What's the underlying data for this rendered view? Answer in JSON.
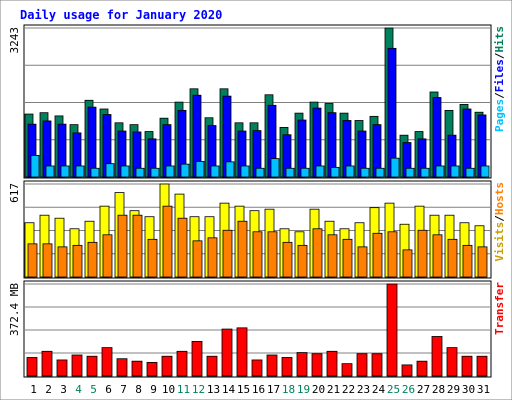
{
  "chart_data": {
    "type": "bar",
    "title": "Daily usage for January 2020",
    "categories": [
      "1",
      "2",
      "3",
      "4",
      "5",
      "6",
      "7",
      "8",
      "9",
      "10",
      "11",
      "12",
      "13",
      "14",
      "15",
      "16",
      "17",
      "18",
      "19",
      "20",
      "21",
      "22",
      "23",
      "24",
      "25",
      "26",
      "27",
      "28",
      "29",
      "30",
      "31"
    ],
    "weekend_days": [
      "4",
      "5",
      "11",
      "12",
      "18",
      "19",
      "25",
      "26"
    ],
    "panels": [
      {
        "id": "hits-files-pages",
        "ylabel": "Hits/Files/Pages",
        "ylabel_parts": [
          "Hits",
          "/",
          "Files",
          "/",
          "Pages"
        ],
        "ymax": 3243,
        "ymax_label": "3243",
        "series": [
          {
            "name": "Hits",
            "color": "#00805c",
            "values": [
              1370,
              1400,
              1330,
              1140,
              1670,
              1480,
              1180,
              1140,
              990,
              1280,
              1630,
              1920,
              1290,
              1920,
              1180,
              1180,
              1790,
              1080,
              1390,
              1630,
              1600,
              1390,
              1230,
              1320,
              3243,
              910,
              990,
              1850,
              1450,
              1580,
              1410
            ]
          },
          {
            "name": "Files",
            "color": "#0000ff",
            "values": [
              1150,
              1220,
              1150,
              960,
              1520,
              1360,
              1000,
              980,
              830,
              1140,
              1450,
              1780,
              1120,
              1760,
              1000,
              1010,
              1560,
              920,
              1240,
              1500,
              1400,
              1230,
              1000,
              1140,
              2800,
              750,
              830,
              1730,
              910,
              1480,
              1350
            ]
          },
          {
            "name": "Pages",
            "color": "#00c0ff",
            "values": [
              470,
              240,
              240,
              240,
              190,
              290,
              240,
              190,
              190,
              240,
              280,
              340,
              240,
              330,
              240,
              190,
              400,
              190,
              190,
              240,
              210,
              240,
              190,
              190,
              410,
              190,
              190,
              240,
              240,
              190,
              240
            ]
          }
        ]
      },
      {
        "id": "visits-hosts",
        "ylabel": "Hosts/Visits",
        "ylabel_parts": [
          "Hosts",
          "/",
          "Visits"
        ],
        "ymax": 617,
        "ymax_label": "617",
        "series": [
          {
            "name": "Visits",
            "color": "#ffff00",
            "values": [
              360,
              410,
              390,
              320,
              370,
              470,
              560,
              440,
              400,
              617,
              550,
              400,
              400,
              490,
              470,
              440,
              450,
              320,
              300,
              450,
              370,
              320,
              360,
              460,
              490,
              350,
              470,
              410,
              410,
              360,
              340
            ]
          },
          {
            "name": "Hosts",
            "color": "#ff8000",
            "values": [
              220,
              220,
              200,
              210,
              230,
              280,
              410,
              410,
              250,
              470,
              390,
              240,
              260,
              310,
              370,
              300,
              300,
              230,
              210,
              320,
              280,
              250,
              200,
              290,
              300,
              180,
              310,
              280,
              250,
              210,
              200
            ]
          }
        ]
      },
      {
        "id": "kbytes",
        "ylabel": "Transfer",
        "ymax_label": "372.4 MB",
        "series": [
          {
            "name": "Transfer",
            "color": "#ff0000",
            "values": [
              75,
              100,
              65,
              85,
              80,
              115,
              70,
              60,
              55,
              80,
              100,
              140,
              80,
              190,
              195,
              65,
              85,
              75,
              95,
              90,
              100,
              50,
              90,
              90,
              372.4,
              45,
              60,
              160,
              115,
              80,
              80
            ]
          }
        ]
      }
    ]
  }
}
